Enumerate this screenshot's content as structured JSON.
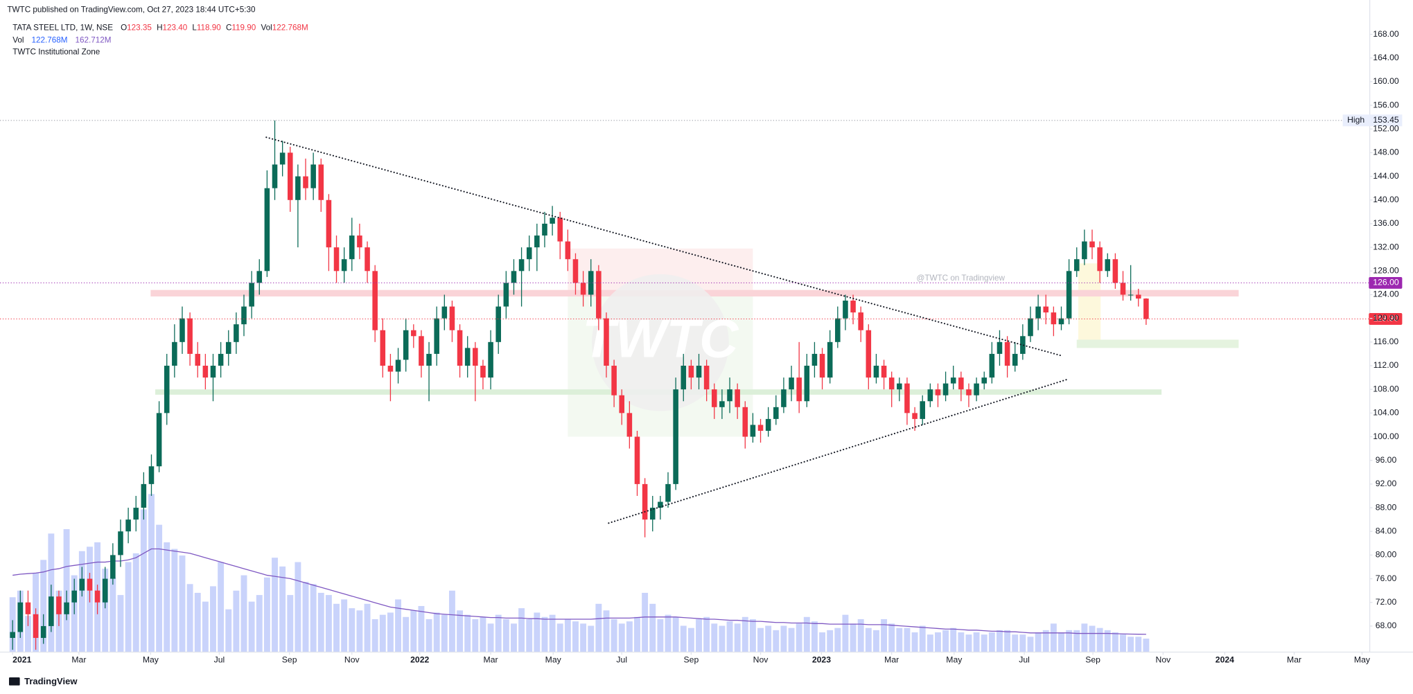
{
  "header": {
    "published": "TWTC published on TradingView.com, Oct 27, 2023 18:44 UTC+5:30",
    "footer_brand": "TradingView"
  },
  "chart_data": {
    "type": "candlestick",
    "title": "TATA STEEL LTD, 1W, NSE",
    "legend": {
      "open_label": "O",
      "open": "123.35",
      "high_label": "H",
      "high": "123.40",
      "low_label": "L",
      "low": "118.90",
      "close_label": "C",
      "close": "119.90",
      "vol_label": "Vol",
      "vol": "122.768M",
      "vol_label_2": "Vol",
      "vol_2": "122.768M",
      "vol_ma": "162.712M",
      "indicator": "TWTC Institutional Zone"
    },
    "watermark": "@TWTC on Tradingview",
    "watermark_logo": "TWTC",
    "up_color": "#0b6b58",
    "down_color": "#f23645",
    "volume_color": "#c9d3fb",
    "volume_ma_color": "#7e57c2",
    "xlim": [
      -0.7,
      176
    ],
    "xticks": [
      {
        "value": 0,
        "label": "2021"
      },
      {
        "value": 8.6,
        "label": "Mar"
      },
      {
        "value": 17.9,
        "label": "May"
      },
      {
        "value": 26.8,
        "label": "Jul"
      },
      {
        "value": 35.9,
        "label": "Sep"
      },
      {
        "value": 44,
        "label": "Nov"
      },
      {
        "value": 52.8,
        "label": "2022"
      },
      {
        "value": 62,
        "label": "Mar"
      },
      {
        "value": 70.1,
        "label": "May"
      },
      {
        "value": 79,
        "label": "Jul"
      },
      {
        "value": 88,
        "label": "Sep"
      },
      {
        "value": 97,
        "label": "Nov"
      },
      {
        "value": 104.9,
        "label": "2023"
      },
      {
        "value": 114,
        "label": "Mar"
      },
      {
        "value": 122.1,
        "label": "May"
      },
      {
        "value": 131.2,
        "label": "Jul"
      },
      {
        "value": 140.1,
        "label": "Sep"
      },
      {
        "value": 149.2,
        "label": "Nov"
      },
      {
        "value": 157.2,
        "label": "2024"
      },
      {
        "value": 166.2,
        "label": "Mar"
      },
      {
        "value": 175,
        "label": "May"
      }
    ],
    "ylim": [
      63.6,
      173.8
    ],
    "yticks": [
      {
        "value": 68,
        "label": "68.00"
      },
      {
        "value": 72,
        "label": "72.00"
      },
      {
        "value": 76,
        "label": "76.00"
      },
      {
        "value": 80,
        "label": "80.00"
      },
      {
        "value": 84,
        "label": "84.00"
      },
      {
        "value": 88,
        "label": "88.00"
      },
      {
        "value": 92,
        "label": "92.00"
      },
      {
        "value": 96,
        "label": "96.00"
      },
      {
        "value": 100,
        "label": "100.00"
      },
      {
        "value": 104,
        "label": "104.00"
      },
      {
        "value": 108,
        "label": "108.00"
      },
      {
        "value": 112,
        "label": "112.00"
      },
      {
        "value": 116,
        "label": "116.00"
      },
      {
        "value": 120,
        "label": "120.00"
      },
      {
        "value": 124,
        "label": "124.00"
      },
      {
        "value": 128,
        "label": "128.00"
      },
      {
        "value": 132,
        "label": "132.00"
      },
      {
        "value": 136,
        "label": "136.00"
      },
      {
        "value": 140,
        "label": "140.00"
      },
      {
        "value": 144,
        "label": "144.00"
      },
      {
        "value": 148,
        "label": "148.00"
      },
      {
        "value": 152,
        "label": "152.00"
      },
      {
        "value": 156,
        "label": "156.00"
      },
      {
        "value": 160,
        "label": "160.00"
      },
      {
        "value": 164,
        "label": "164.00"
      },
      {
        "value": 168,
        "label": "168.00"
      }
    ],
    "volume_ylim": [
      0,
      5940
    ],
    "price_lines": [
      {
        "name": "High",
        "value": 153.45,
        "label": "153.45",
        "color": "#9598a1"
      },
      {
        "value": 126,
        "label": "126.00",
        "color": "#9c27b0"
      },
      {
        "value": 119.9,
        "label": "119.90",
        "color": "#f23645"
      }
    ],
    "zones": [
      {
        "x": [
          72,
          96
        ],
        "y": [
          124,
          131.8
        ],
        "color": "#fdeeee"
      },
      {
        "x": [
          72,
          96
        ],
        "y": [
          100,
          124
        ],
        "color": "#f3f9f1"
      },
      {
        "x": [
          138.2,
          141.1
        ],
        "y": [
          115.9,
          129.3
        ],
        "color": "#fdf8dc"
      },
      {
        "x": [
          17.9,
          159
        ],
        "y": [
          123.7,
          124.8
        ],
        "color": "#fad4d8"
      },
      {
        "x": [
          18.5,
          149
        ],
        "y": [
          107.1,
          108
        ],
        "color": "#dcefd9"
      },
      {
        "x": [
          138,
          159
        ],
        "y": [
          115,
          116.4
        ],
        "color": "#e5f3df"
      }
    ],
    "trendlines": [
      {
        "x": [
          32.9,
          136
        ],
        "y": [
          150.6,
          113.7
        ]
      },
      {
        "x": [
          77.3,
          136.8
        ],
        "y": [
          85.4,
          109.7
        ]
      }
    ],
    "candles": [
      [
        66,
        69,
        64,
        67
      ],
      [
        67,
        74,
        66,
        72
      ],
      [
        72,
        74,
        68,
        70
      ],
      [
        70,
        71,
        64,
        66
      ],
      [
        66,
        70,
        65,
        68
      ],
      [
        68,
        75,
        67,
        73
      ],
      [
        73,
        74,
        68,
        70
      ],
      [
        70,
        74,
        69,
        72
      ],
      [
        72,
        76,
        70,
        74
      ],
      [
        74,
        78,
        73,
        76
      ],
      [
        76,
        77,
        72,
        74
      ],
      [
        74,
        75,
        70,
        72
      ],
      [
        72,
        78,
        71,
        76
      ],
      [
        76,
        82,
        75,
        80
      ],
      [
        80,
        86,
        78,
        84
      ],
      [
        84,
        88,
        82,
        86
      ],
      [
        86,
        90,
        84,
        88
      ],
      [
        88,
        94,
        86,
        92
      ],
      [
        92,
        97,
        90,
        95
      ],
      [
        95,
        106,
        94,
        104
      ],
      [
        104,
        114,
        102,
        112
      ],
      [
        112,
        119,
        110,
        116
      ],
      [
        116,
        122,
        114,
        120
      ],
      [
        120,
        121,
        112,
        114
      ],
      [
        114,
        116,
        110,
        112
      ],
      [
        112,
        114,
        108,
        110
      ],
      [
        110,
        114,
        106,
        112
      ],
      [
        112,
        116,
        110,
        114
      ],
      [
        114,
        118,
        112,
        116
      ],
      [
        116,
        121,
        114,
        119
      ],
      [
        119,
        124,
        117,
        122
      ],
      [
        122,
        128,
        120,
        126
      ],
      [
        126,
        130,
        124,
        128
      ],
      [
        128,
        145,
        127,
        142
      ],
      [
        142,
        153.45,
        140,
        146
      ],
      [
        146,
        150,
        144,
        148
      ],
      [
        148,
        149,
        138,
        140
      ],
      [
        140,
        146,
        132,
        144
      ],
      [
        144,
        147,
        140,
        142
      ],
      [
        142,
        148,
        140,
        146
      ],
      [
        146,
        147,
        138,
        140
      ],
      [
        140,
        141,
        128,
        132
      ],
      [
        132,
        134,
        126,
        128
      ],
      [
        128,
        132,
        126,
        130
      ],
      [
        130,
        137,
        128,
        134
      ],
      [
        134,
        136,
        130,
        132
      ],
      [
        132,
        133,
        126,
        128
      ],
      [
        128,
        129,
        116,
        118
      ],
      [
        118,
        120,
        110,
        112
      ],
      [
        112,
        114,
        106,
        111
      ],
      [
        111,
        115,
        109,
        113
      ],
      [
        113,
        120,
        111,
        118
      ],
      [
        118,
        119,
        115,
        117
      ],
      [
        117,
        118,
        110,
        112
      ],
      [
        112,
        116,
        106,
        114
      ],
      [
        114,
        122,
        112,
        120
      ],
      [
        120,
        124,
        118,
        122
      ],
      [
        122,
        123,
        116,
        118
      ],
      [
        118,
        119,
        110,
        112
      ],
      [
        112,
        117,
        110,
        115
      ],
      [
        115,
        116,
        106,
        112
      ],
      [
        112,
        113,
        108,
        110
      ],
      [
        110,
        118,
        108,
        116
      ],
      [
        116,
        124,
        114,
        122
      ],
      [
        122,
        128,
        120,
        126
      ],
      [
        126,
        130,
        124,
        128
      ],
      [
        128,
        132,
        122,
        130
      ],
      [
        130,
        134,
        128,
        132
      ],
      [
        132,
        136,
        128,
        134
      ],
      [
        134,
        138,
        132,
        136
      ],
      [
        136,
        139,
        134,
        137
      ],
      [
        137,
        138,
        130,
        133
      ],
      [
        133,
        135,
        128,
        130
      ],
      [
        130,
        131,
        124,
        126
      ],
      [
        126,
        128,
        122,
        124
      ],
      [
        124,
        130,
        122,
        128
      ],
      [
        128,
        129,
        118,
        120
      ],
      [
        120,
        121,
        110,
        112
      ],
      [
        112,
        113,
        105,
        107
      ],
      [
        107,
        108,
        102,
        104
      ],
      [
        104,
        106,
        98,
        100
      ],
      [
        100,
        101,
        90,
        92
      ],
      [
        92,
        93,
        83,
        86
      ],
      [
        86,
        90,
        84,
        88
      ],
      [
        88,
        90,
        86,
        89
      ],
      [
        89,
        94,
        88,
        92
      ],
      [
        92,
        110,
        91,
        108
      ],
      [
        108,
        114,
        106,
        112
      ],
      [
        112,
        113,
        108,
        110
      ],
      [
        110,
        114,
        108,
        112
      ],
      [
        112,
        113,
        106,
        108
      ],
      [
        108,
        109,
        103,
        105
      ],
      [
        105,
        108,
        103,
        106
      ],
      [
        106,
        110,
        104,
        108
      ],
      [
        108,
        109,
        103,
        105
      ],
      [
        105,
        106,
        98,
        100
      ],
      [
        100,
        104,
        99,
        102
      ],
      [
        102,
        103,
        99,
        101
      ],
      [
        101,
        105,
        100,
        103
      ],
      [
        103,
        107,
        102,
        105
      ],
      [
        105,
        110,
        104,
        108
      ],
      [
        108,
        112,
        106,
        110
      ],
      [
        110,
        116,
        104,
        106
      ],
      [
        106,
        114,
        105,
        112
      ],
      [
        112,
        116,
        110,
        114
      ],
      [
        114,
        115,
        108,
        110
      ],
      [
        110,
        118,
        109,
        116
      ],
      [
        116,
        122,
        115,
        120
      ],
      [
        120,
        124,
        118,
        123
      ],
      [
        123,
        124,
        119,
        121
      ],
      [
        121,
        122,
        116,
        118
      ],
      [
        118,
        119,
        108,
        110
      ],
      [
        110,
        114,
        109,
        112
      ],
      [
        112,
        113,
        108,
        110
      ],
      [
        110,
        111,
        105,
        108
      ],
      [
        108,
        110,
        106,
        109
      ],
      [
        109,
        110,
        102,
        104
      ],
      [
        104,
        105,
        101,
        103
      ],
      [
        103,
        107,
        102,
        106
      ],
      [
        106,
        109,
        105,
        108
      ],
      [
        108,
        109,
        105,
        107
      ],
      [
        107,
        111,
        106,
        109
      ],
      [
        109,
        112,
        108,
        110
      ],
      [
        110,
        111,
        106,
        108
      ],
      [
        108,
        109,
        105,
        107
      ],
      [
        107,
        110,
        106,
        109
      ],
      [
        109,
        111,
        108,
        110
      ],
      [
        110,
        116,
        109,
        114
      ],
      [
        114,
        118,
        112,
        116
      ],
      [
        116,
        117,
        110,
        112
      ],
      [
        112,
        116,
        111,
        114
      ],
      [
        114,
        119,
        113,
        117
      ],
      [
        117,
        122,
        116,
        120
      ],
      [
        120,
        124,
        118,
        122
      ],
      [
        122,
        124,
        119,
        121
      ],
      [
        121,
        122,
        117,
        119
      ],
      [
        119,
        122,
        118,
        120
      ],
      [
        120,
        130,
        119,
        128
      ],
      [
        128,
        132,
        127,
        130
      ],
      [
        130,
        135,
        129,
        133
      ],
      [
        133,
        135,
        130,
        132
      ],
      [
        132,
        133,
        126,
        128
      ],
      [
        128,
        131,
        127,
        130
      ],
      [
        130,
        131,
        125,
        126
      ],
      [
        126,
        128,
        123,
        124
      ],
      [
        124,
        129,
        123,
        124
      ],
      [
        124,
        125,
        122,
        123.35
      ],
      [
        123.35,
        123.4,
        118.9,
        119.9
      ]
    ],
    "volume": [
      500,
      560,
      330,
      720,
      840,
      1080,
      560,
      1120,
      700,
      920,
      960,
      1000,
      760,
      680,
      520,
      820,
      900,
      1300,
      1440,
      1160,
      1000,
      940,
      880,
      620,
      540,
      460,
      600,
      820,
      390,
      560,
      700,
      460,
      520,
      680,
      860,
      780,
      520,
      820,
      640,
      620,
      540,
      520,
      440,
      480,
      400,
      380,
      440,
      300,
      340,
      360,
      480,
      320,
      380,
      420,
      300,
      360,
      340,
      560,
      380,
      340,
      300,
      320,
      260,
      340,
      300,
      260,
      400,
      300,
      360,
      320,
      340,
      260,
      300,
      280,
      260,
      240,
      440,
      380,
      300,
      260,
      280,
      320,
      540,
      440,
      300,
      340,
      320,
      240,
      220,
      300,
      320,
      260,
      240,
      280,
      260,
      320,
      300,
      220,
      240,
      200,
      240,
      220,
      260,
      320,
      280,
      180,
      200,
      220,
      340,
      260,
      300,
      220,
      200,
      300,
      260,
      220,
      220,
      180,
      240,
      160,
      180,
      200,
      220,
      180,
      160,
      180,
      160,
      180,
      200,
      200,
      160,
      160,
      140,
      180,
      200,
      260,
      180,
      200,
      200,
      260,
      240,
      220,
      200,
      180,
      160,
      140,
      140,
      122.768
    ],
    "volume_ma": [
      700,
      710,
      715,
      720,
      730,
      750,
      760,
      780,
      790,
      800,
      810,
      820,
      820,
      830,
      830,
      840,
      860,
      900,
      940,
      940,
      930,
      920,
      910,
      900,
      880,
      860,
      840,
      820,
      800,
      780,
      760,
      740,
      720,
      700,
      690,
      680,
      670,
      650,
      630,
      610,
      590,
      570,
      550,
      530,
      510,
      490,
      470,
      450,
      430,
      410,
      400,
      390,
      380,
      370,
      360,
      350,
      345,
      340,
      335,
      330,
      325,
      320,
      315,
      315,
      310,
      310,
      310,
      305,
      305,
      300,
      300,
      300,
      300,
      300,
      300,
      300,
      305,
      310,
      310,
      310,
      310,
      315,
      320,
      320,
      320,
      320,
      320,
      315,
      310,
      305,
      300,
      300,
      295,
      290,
      290,
      285,
      280,
      280,
      275,
      270,
      270,
      265,
      265,
      265,
      260,
      260,
      255,
      255,
      255,
      255,
      255,
      250,
      250,
      250,
      245,
      240,
      235,
      230,
      225,
      220,
      215,
      210,
      210,
      205,
      200,
      200,
      195,
      190,
      190,
      185,
      185,
      180,
      175,
      175,
      175,
      175,
      175,
      175,
      170,
      170,
      170,
      170,
      170,
      168,
      166,
      164,
      163,
      162.712
    ]
  }
}
